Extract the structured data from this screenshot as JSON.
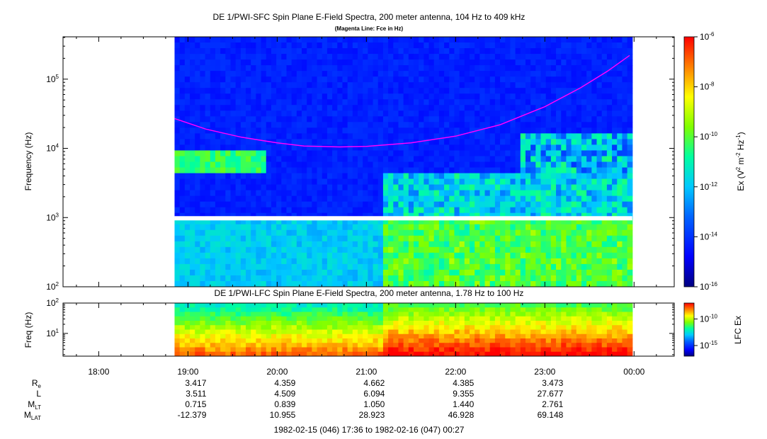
{
  "chart_data": [
    {
      "type": "heatmap",
      "title": "DE 1/PWI-SFC  Spin Plane E-Field Spectra, 200 meter antenna, 104 Hz to 409 kHz",
      "subtitle": "(Magenta Line: Fce in Hz)",
      "ylabel": "Frequency (Hz)",
      "y_scale": "log",
      "ylim": [
        100,
        409000
      ],
      "y_ticks": [
        {
          "value": 100,
          "base": "10",
          "exp": "2"
        },
        {
          "value": 1000,
          "base": "10",
          "exp": "3"
        },
        {
          "value": 10000,
          "base": "10",
          "exp": "4"
        },
        {
          "value": 100000,
          "base": "10",
          "exp": "5"
        }
      ],
      "data_gap_hz": 1000,
      "colorbar": {
        "label_parts": [
          "Ex (V",
          "2",
          " m",
          "-2",
          " Hz",
          "-1",
          ")"
        ],
        "scale": "log",
        "range": [
          1e-16,
          1e-06
        ],
        "ticks": [
          {
            "value": 1e-06,
            "base": "10",
            "exp": "-6"
          },
          {
            "value": 1e-08,
            "base": "10",
            "exp": "-8"
          },
          {
            "value": 1e-10,
            "base": "10",
            "exp": "-10"
          },
          {
            "value": 1e-12,
            "base": "10",
            "exp": "-12"
          },
          {
            "value": 1e-14,
            "base": "10",
            "exp": "-14"
          },
          {
            "value": 1e-16,
            "base": "10",
            "exp": "-16"
          }
        ]
      },
      "series": [
        {
          "name": "Fce",
          "color": "#ff00ff",
          "x_hours": [
            18.85,
            19.2,
            19.6,
            20.0,
            20.3,
            20.7,
            21.0,
            21.5,
            22.0,
            22.5,
            23.0,
            23.4,
            23.7,
            23.95
          ],
          "y_hz": [
            27000,
            19000,
            14500,
            12000,
            10800,
            10500,
            10700,
            12000,
            15000,
            22000,
            40000,
            75000,
            130000,
            220000
          ]
        }
      ]
    },
    {
      "type": "heatmap",
      "title": "DE 1/PWI-LFC  Spin Plane E-Field Spectra, 200 meter antenna, 1.78 Hz to 100 Hz",
      "ylabel": "Freq (Hz)",
      "y_scale": "log",
      "ylim": [
        1.78,
        100
      ],
      "y_ticks": [
        {
          "value": 10,
          "base": "10",
          "exp": "1"
        },
        {
          "value": 100,
          "base": "10",
          "exp": "2"
        }
      ],
      "colorbar": {
        "label": "LFC Ex",
        "scale": "log",
        "ticks": [
          {
            "value": 1e-10,
            "base": "10",
            "exp": "-10"
          },
          {
            "value": 1e-15,
            "base": "10",
            "exp": "-15"
          }
        ]
      }
    }
  ],
  "time_axis": {
    "start_hour": 17.6,
    "end_hour": 24.45,
    "data_start_hour": 18.85,
    "data_end_hour": 23.98,
    "tick_hours": [
      18,
      19,
      20,
      21,
      22,
      23,
      24
    ],
    "tick_labels": [
      "18:00",
      "19:00",
      "20:00",
      "21:00",
      "22:00",
      "23:00",
      "00:00"
    ],
    "minor_step_hours": 0.25
  },
  "ephemeris": {
    "rows": [
      {
        "label": "R",
        "sub": "e",
        "values": [
          "3.417",
          "4.359",
          "4.662",
          "4.385",
          "3.473"
        ]
      },
      {
        "label": "L",
        "sub": "",
        "values": [
          "3.511",
          "4.509",
          "6.094",
          "9.355",
          "27.677"
        ]
      },
      {
        "label": "M",
        "sub": "LT",
        "values": [
          "0.715",
          "0.839",
          "1.050",
          "1.440",
          "2.761"
        ]
      },
      {
        "label": "M",
        "sub": "LAT",
        "values": [
          "-12.379",
          "10.955",
          "28.923",
          "46.928",
          "69.148"
        ]
      }
    ],
    "column_hours": [
      19,
      20,
      21,
      22,
      23
    ]
  },
  "footer": "1982-02-15 (046) 17:36 to 1982-02-16 (047) 00:27",
  "colors": {
    "background": "#ffffff",
    "no_data": "#ffffff",
    "fce_line": "#ff00ff"
  }
}
